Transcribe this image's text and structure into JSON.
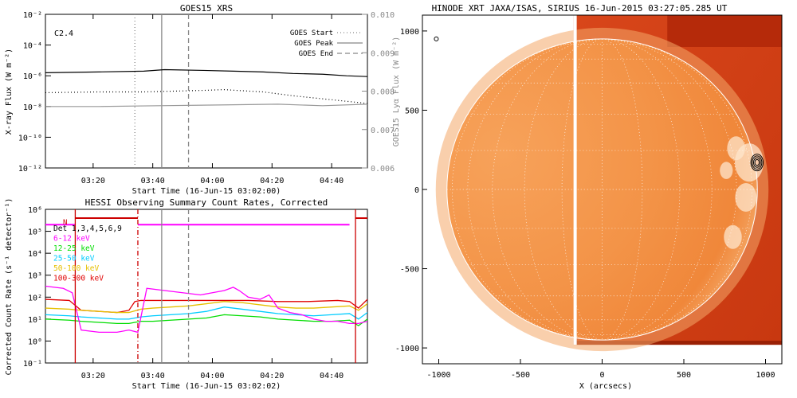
{
  "chart_data": [
    {
      "type": "line",
      "title": "GOES15 XRS",
      "xlabel": "Start Time (16-Jun-15 03:02:00)",
      "ylabel": "X-ray Flux (W m⁻²)",
      "ylabel_right": "GOES15 Lyα Flux (W m⁻²)",
      "annotation": "C2.4",
      "x_ticks": [
        "03:20",
        "03:40",
        "04:00",
        "04:20",
        "04:40"
      ],
      "y_ticks": [
        "10⁻²",
        "10⁻⁴",
        "10⁻⁶",
        "10⁻⁸",
        "10⁻¹⁰",
        "10⁻¹²"
      ],
      "y_ticks_right": [
        "0.010",
        "0.009",
        "0.008",
        "0.007",
        "0.006"
      ],
      "ylim_log10": [
        -12,
        -2
      ],
      "ylim_right": [
        0.006,
        0.01
      ],
      "xlim_minutes": [
        2,
        110
      ],
      "legend": [
        {
          "label": "GOES Start",
          "style": "dotted",
          "color": "#888888",
          "minute": 32
        },
        {
          "label": "GOES Peak",
          "style": "solid",
          "color": "#888888",
          "minute": 41
        },
        {
          "label": "GOES End",
          "style": "dashed",
          "color": "#888888",
          "minute": 50
        }
      ],
      "series": [
        {
          "style": "solid",
          "color": "#000000",
          "axis": "left",
          "x": [
            2,
            20,
            35,
            42,
            55,
            65,
            75,
            85,
            95,
            103,
            110
          ],
          "log10": [
            -5.8,
            -5.75,
            -5.7,
            -5.6,
            -5.65,
            -5.7,
            -5.75,
            -5.85,
            -5.9,
            -6.0,
            -6.05
          ]
        },
        {
          "style": "dotted",
          "color": "#000000",
          "axis": "left",
          "x": [
            2,
            20,
            35,
            45,
            55,
            62,
            66,
            75,
            85,
            95,
            100,
            110
          ],
          "log10": [
            -7.1,
            -7.05,
            -7.05,
            -7.0,
            -6.95,
            -6.9,
            -6.95,
            -7.05,
            -7.3,
            -7.5,
            -7.6,
            -7.8
          ]
        },
        {
          "style": "solid",
          "color": "#999999",
          "axis": "left",
          "x": [
            2,
            20,
            40,
            60,
            80,
            95,
            110
          ],
          "log10": [
            -8.0,
            -8.0,
            -7.95,
            -7.9,
            -7.85,
            -7.95,
            -7.85
          ]
        }
      ]
    },
    {
      "type": "line",
      "title": "HESSI Observing Summary Count Rates, Corrected",
      "xlabel": "Start Time (16-Jun-15 03:02:02)",
      "ylabel": "Corrected Count Rate (s⁻¹ detector⁻¹)",
      "x_ticks": [
        "03:20",
        "03:40",
        "04:00",
        "04:20",
        "04:40"
      ],
      "y_ticks": [
        "10⁶",
        "10⁵",
        "10⁴",
        "10³",
        "10²",
        "10¹",
        "10⁰",
        "10⁻¹"
      ],
      "ylim_log10": [
        -1,
        6
      ],
      "xlim_minutes": [
        2,
        110
      ],
      "flag_label": "N",
      "legend": [
        {
          "label": "Det 1,3,4,5,6,9",
          "color": "#000000"
        },
        {
          "label": "6-12 keV",
          "color": "#ff00ff"
        },
        {
          "label": "12-25 keV",
          "color": "#00dd00"
        },
        {
          "label": "25-50 keV",
          "color": "#00ccff"
        },
        {
          "label": "50-100 keV",
          "color": "#e6c000"
        },
        {
          "label": "100-300 keV",
          "color": "#e00000"
        }
      ],
      "markers": [
        {
          "style": "solid",
          "color": "#cc0000",
          "minute": 12
        },
        {
          "style": "dashdot",
          "color": "#cc0000",
          "minute": 33
        },
        {
          "style": "solid",
          "color": "#888888",
          "minute": 41
        },
        {
          "style": "dashed",
          "color": "#888888",
          "minute": 50
        },
        {
          "style": "solid",
          "color": "#cc0000",
          "minute": 106
        }
      ],
      "attenuator_level_log10": 5.3,
      "series": [
        {
          "name": "6-12 keV",
          "color": "#ff00ff",
          "x": [
            2,
            5,
            8,
            11,
            14,
            20,
            26,
            30,
            33,
            36,
            42,
            48,
            54,
            58,
            62,
            65,
            67,
            70,
            74,
            77,
            80,
            84,
            88,
            92,
            96,
            100,
            104,
            107,
            110
          ],
          "log10": [
            2.5,
            2.45,
            2.4,
            2.2,
            0.5,
            0.4,
            0.4,
            0.5,
            0.4,
            2.4,
            2.3,
            2.2,
            2.1,
            2.2,
            2.3,
            2.45,
            2.3,
            2.0,
            1.9,
            2.1,
            1.5,
            1.3,
            1.2,
            1.0,
            0.9,
            0.9,
            0.8,
            0.8,
            0.9
          ]
        },
        {
          "name": "12-25 keV",
          "color": "#00dd00",
          "x": [
            2,
            10,
            14,
            20,
            26,
            30,
            34,
            38,
            44,
            50,
            56,
            62,
            68,
            74,
            80,
            86,
            92,
            98,
            104,
            107,
            110
          ],
          "log10": [
            1.0,
            0.95,
            0.9,
            0.85,
            0.8,
            0.8,
            0.9,
            0.9,
            0.95,
            1.0,
            1.05,
            1.2,
            1.15,
            1.1,
            1.0,
            0.95,
            0.9,
            0.9,
            0.95,
            0.7,
            1.0
          ]
        },
        {
          "name": "25-50 keV",
          "color": "#00ccff",
          "x": [
            2,
            10,
            14,
            20,
            26,
            30,
            34,
            38,
            44,
            50,
            56,
            62,
            68,
            74,
            80,
            86,
            92,
            98,
            104,
            107,
            110
          ],
          "log10": [
            1.2,
            1.15,
            1.1,
            1.05,
            1.0,
            1.0,
            1.1,
            1.15,
            1.2,
            1.25,
            1.35,
            1.55,
            1.45,
            1.35,
            1.25,
            1.2,
            1.15,
            1.2,
            1.25,
            1.0,
            1.3
          ]
        },
        {
          "name": "50-100 keV",
          "color": "#e6c000",
          "x": [
            2,
            10,
            14,
            20,
            26,
            30,
            34,
            38,
            44,
            50,
            56,
            62,
            68,
            74,
            80,
            86,
            92,
            98,
            104,
            107,
            110
          ],
          "log10": [
            1.5,
            1.45,
            1.4,
            1.35,
            1.3,
            1.3,
            1.45,
            1.5,
            1.55,
            1.6,
            1.7,
            1.8,
            1.75,
            1.65,
            1.55,
            1.5,
            1.5,
            1.55,
            1.6,
            1.4,
            1.7
          ]
        },
        {
          "name": "100-300 keV",
          "color": "#e00000",
          "x": [
            2,
            10,
            14,
            20,
            26,
            30,
            32,
            34,
            40,
            50,
            60,
            70,
            80,
            90,
            100,
            104,
            107,
            110
          ],
          "log10": [
            1.9,
            1.85,
            1.4,
            1.35,
            1.3,
            1.4,
            1.8,
            1.85,
            1.85,
            1.85,
            1.85,
            1.85,
            1.8,
            1.8,
            1.85,
            1.8,
            1.5,
            1.9
          ]
        }
      ]
    },
    {
      "type": "heatmap",
      "title": "HINODE XRT JAXA/ISAS, SIRIUS 16-Jun-2015 03:27:05.285 UT",
      "xlabel": "X (arcsecs)",
      "ylabel": "",
      "x_ticks": [
        "-1000",
        "-500",
        "0",
        "500",
        "1000"
      ],
      "y_ticks": [
        "1000",
        "500",
        "0",
        "-500",
        "-1000"
      ],
      "xlim": [
        -1100,
        1100
      ],
      "ylim": [
        -1100,
        1100
      ],
      "image_x_range": [
        -175,
        1100
      ],
      "image_y_range": [
        -980,
        1100
      ],
      "solar_radius_arcsec": 950,
      "grid": true,
      "contour_center": [
        948,
        170
      ],
      "contour_radii": [
        5,
        8,
        11,
        14
      ]
    }
  ]
}
